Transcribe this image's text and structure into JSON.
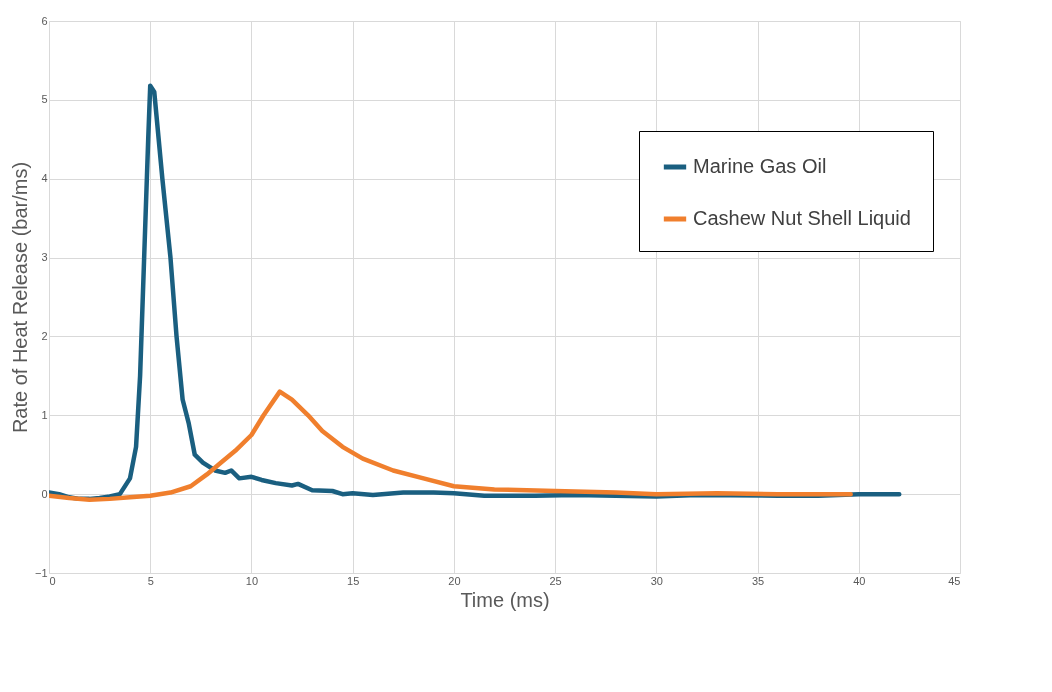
{
  "chart_data": {
    "type": "line",
    "xlabel": "Time (ms)",
    "ylabel": "Rate of Heat Release (bar/ms)",
    "xlim": [
      0,
      45
    ],
    "ylim": [
      -1,
      6
    ],
    "xticks": [
      0,
      5,
      10,
      15,
      20,
      25,
      30,
      35,
      40,
      45
    ],
    "yticks": [
      -1,
      0,
      1,
      2,
      3,
      4,
      5,
      6
    ],
    "grid": true,
    "legend": "top right",
    "marker": "none",
    "line_style": "solid",
    "series": [
      {
        "name": "Marine Gas Oil",
        "color": "#1a5f80",
        "x": [
          0,
          0.5,
          1,
          1.5,
          2,
          2.5,
          3,
          3.5,
          4,
          4.3,
          4.5,
          4.7,
          4.9,
          5.0,
          5.2,
          5.6,
          6.0,
          6.3,
          6.6,
          6.9,
          7.2,
          7.6,
          8.2,
          8.7,
          9.0,
          9.4,
          10,
          10.5,
          11.2,
          12,
          12.3,
          13,
          14,
          14.5,
          15,
          16,
          17.5,
          19,
          20,
          21.5,
          24,
          26,
          30,
          32,
          36,
          38,
          40,
          42
        ],
        "values": [
          0.02,
          0.0,
          -0.04,
          -0.06,
          -0.06,
          -0.05,
          -0.03,
          0.0,
          0.2,
          0.6,
          1.5,
          3.0,
          4.5,
          5.18,
          5.1,
          4.0,
          3.0,
          2.0,
          1.2,
          0.9,
          0.5,
          0.4,
          0.3,
          0.27,
          0.3,
          0.2,
          0.22,
          0.18,
          0.14,
          0.11,
          0.13,
          0.05,
          0.04,
          0.0,
          0.01,
          -0.01,
          0.02,
          0.02,
          0.01,
          -0.02,
          -0.02,
          -0.01,
          -0.03,
          -0.01,
          -0.02,
          -0.02,
          0.0,
          0.0
        ]
      },
      {
        "name": "Cashew Nut Shell Liquid",
        "color": "#f07f2d",
        "x": [
          0,
          1,
          2,
          3,
          4,
          5,
          6,
          7,
          7.8,
          8.5,
          9.2,
          10,
          10.6,
          11.4,
          12,
          12.8,
          13.5,
          14.5,
          15.5,
          17,
          18.5,
          20,
          22,
          25,
          28,
          30,
          33,
          36,
          39.6
        ],
        "values": [
          -0.02,
          -0.05,
          -0.07,
          -0.06,
          -0.04,
          -0.02,
          0.02,
          0.1,
          0.25,
          0.4,
          0.55,
          0.75,
          1.0,
          1.3,
          1.2,
          1.0,
          0.8,
          0.6,
          0.45,
          0.3,
          0.2,
          0.1,
          0.06,
          0.04,
          0.02,
          0.0,
          0.01,
          0.0,
          0.0
        ]
      }
    ]
  }
}
